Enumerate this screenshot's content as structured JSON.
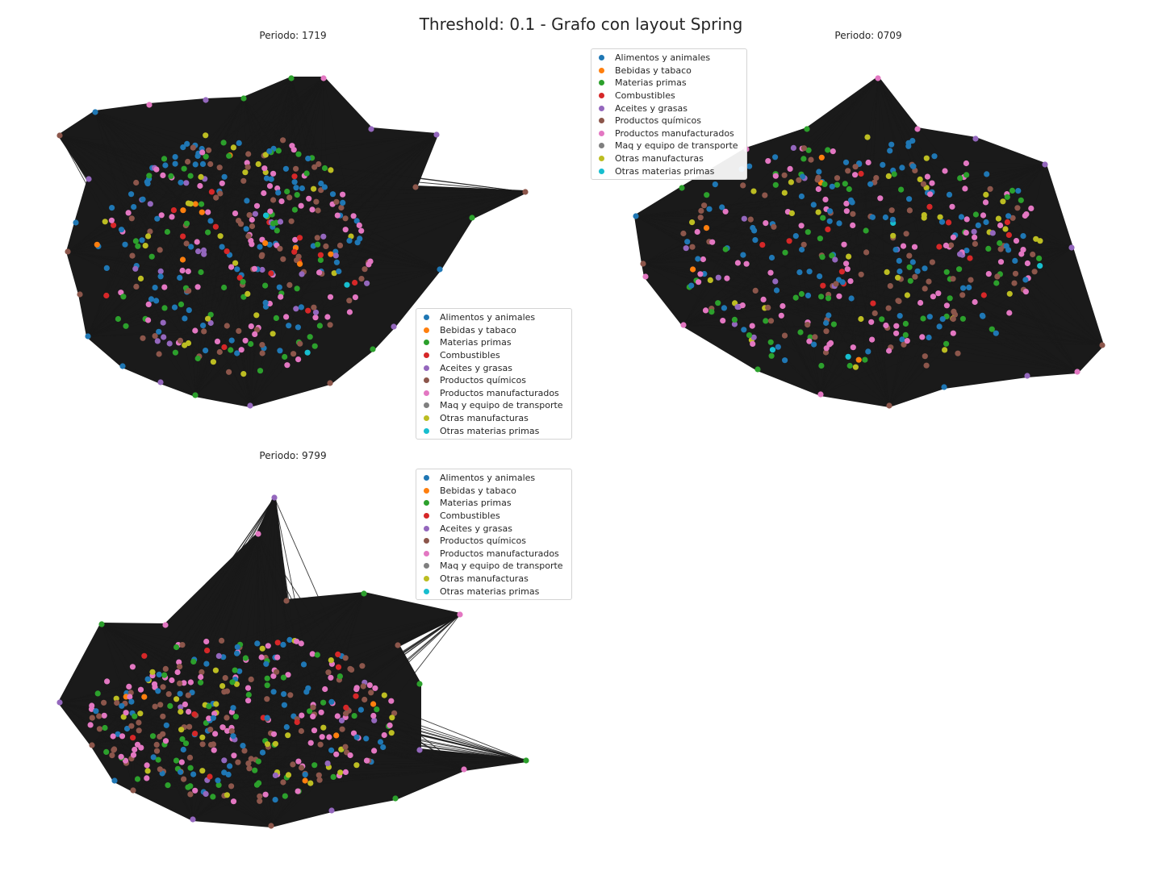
{
  "figure": {
    "suptitle": "Threshold: 0.1 - Grafo con layout Spring"
  },
  "chart_data": {
    "type": "network",
    "layout": "spring",
    "grid": false,
    "categories": [
      {
        "label": "Alimentos y animales",
        "color": "#1f77b4"
      },
      {
        "label": "Bebidas y tabaco",
        "color": "#ff7f0e"
      },
      {
        "label": "Materias primas",
        "color": "#2ca02c"
      },
      {
        "label": "Combustibles",
        "color": "#d62728"
      },
      {
        "label": "Aceites y grasas",
        "color": "#9467bd"
      },
      {
        "label": "Productos químicos",
        "color": "#8c564b"
      },
      {
        "label": "Productos manufacturados",
        "color": "#e377c2"
      },
      {
        "label": "Maq y equipo de transporte",
        "color": "#7f7f7f"
      },
      {
        "label": "Otras manufacturas",
        "color": "#bcbd22"
      },
      {
        "label": "Otras materias primas",
        "color": "#17becf"
      }
    ],
    "edge_color": "#1a1a1a",
    "panels": [
      {
        "title": "Periodo: 1719",
        "legend_position": "lower right",
        "node_mix": {
          "Alimentos y animales": 0.24,
          "Bebidas y tabaco": 0.03,
          "Materias primas": 0.15,
          "Combustibles": 0.04,
          "Aceites y grasas": 0.06,
          "Productos químicos": 0.2,
          "Productos manufacturados": 0.2,
          "Otras manufacturas": 0.07,
          "Otras materias primas": 0.01
        }
      },
      {
        "title": "Periodo: 0709",
        "legend_position": "upper left",
        "node_mix": {
          "Alimentos y animales": 0.23,
          "Bebidas y tabaco": 0.02,
          "Materias primas": 0.16,
          "Combustibles": 0.03,
          "Aceites y grasas": 0.03,
          "Productos químicos": 0.2,
          "Productos manufacturados": 0.23,
          "Otras manufacturas": 0.09,
          "Otras materias primas": 0.01
        }
      },
      {
        "title": "Periodo: 9799",
        "legend_position": "upper right",
        "node_mix": {
          "Alimentos y animales": 0.22,
          "Bebidas y tabaco": 0.02,
          "Materias primas": 0.15,
          "Combustibles": 0.03,
          "Aceites y grasas": 0.03,
          "Productos químicos": 0.22,
          "Productos manufacturados": 0.23,
          "Otras manufacturas": 0.09,
          "Otras materias primas": 0.01
        }
      }
    ]
  }
}
